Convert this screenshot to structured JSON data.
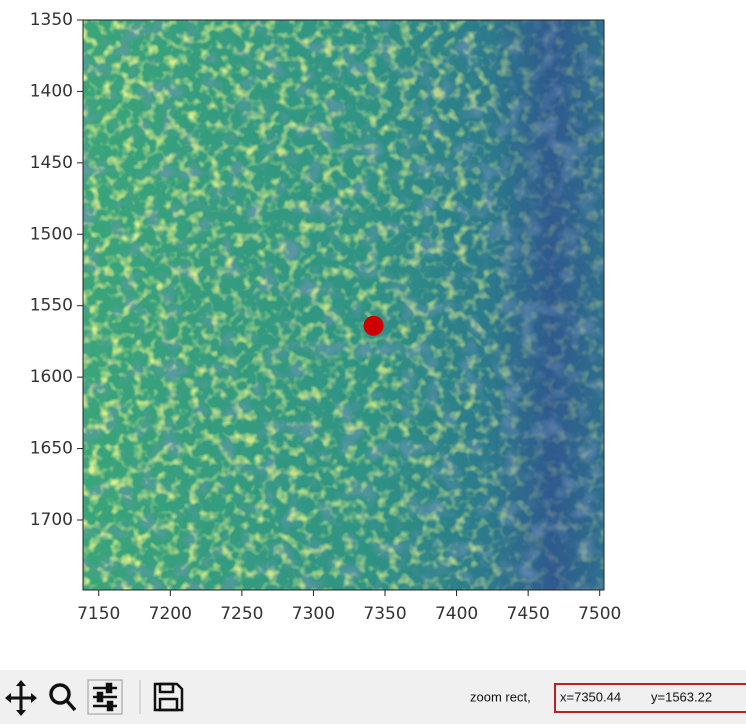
{
  "chart_data": {
    "type": "image",
    "xlim": [
      7139,
      7503
    ],
    "ylim": [
      1749,
      1350
    ],
    "xticks": [
      7150,
      7200,
      7250,
      7300,
      7350,
      7400,
      7450,
      7500
    ],
    "yticks": [
      1350,
      1400,
      1450,
      1500,
      1550,
      1600,
      1650,
      1700
    ],
    "marker": {
      "x": 7342,
      "y": 1564,
      "color": "#cc0000"
    }
  },
  "toolbar": {
    "mode": "zoom rect,",
    "x_readout": "x=7350.44",
    "y_readout": "y=1563.22"
  }
}
